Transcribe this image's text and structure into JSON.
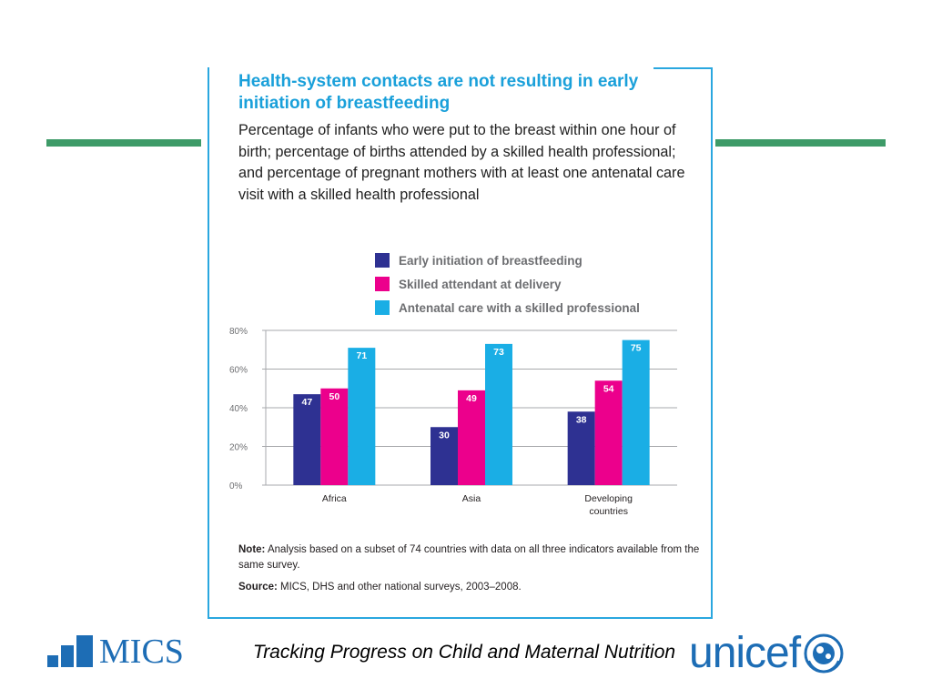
{
  "header": {
    "title": "Health-system contacts are not resulting in early initiation of breastfeeding",
    "subtitle": "Percentage of infants who were put to the breast within one hour of birth; percentage of births attended by a skilled health professional; and percentage of pregnant mothers with at least one antenatal care visit with a skilled health professional"
  },
  "colors": {
    "series1": "#2e3192",
    "series2": "#ec008c",
    "series3": "#1aaee5",
    "frame": "#2aa7df",
    "green_rule": "#3e9b68",
    "brand_blue": "#1d6db5"
  },
  "chart_data": {
    "type": "bar",
    "categories": [
      "Africa",
      "Asia",
      "Developing countries"
    ],
    "series": [
      {
        "name": "Early initiation of breastfeeding",
        "values": [
          47,
          30,
          38
        ]
      },
      {
        "name": "Skilled attendant at delivery",
        "values": [
          50,
          49,
          54
        ]
      },
      {
        "name": "Antenatal care with a skilled professional",
        "values": [
          71,
          73,
          75
        ]
      }
    ],
    "yticks": [
      "0%",
      "20%",
      "40%",
      "60%",
      "80%"
    ],
    "ylim": [
      0,
      80
    ],
    "legend_position": "top-right",
    "grid": true
  },
  "note": {
    "label": "Note:",
    "text": "Analysis based on a subset of 74 countries with data on all three indicators available from the same survey."
  },
  "source": {
    "label": "Source:",
    "text": "MICS, DHS and other national surveys, 2003–2008."
  },
  "footer": {
    "mics_logo_text": "MICS",
    "caption": "Tracking Progress on Child and Maternal Nutrition",
    "unicef_logo_text": "unicef"
  }
}
